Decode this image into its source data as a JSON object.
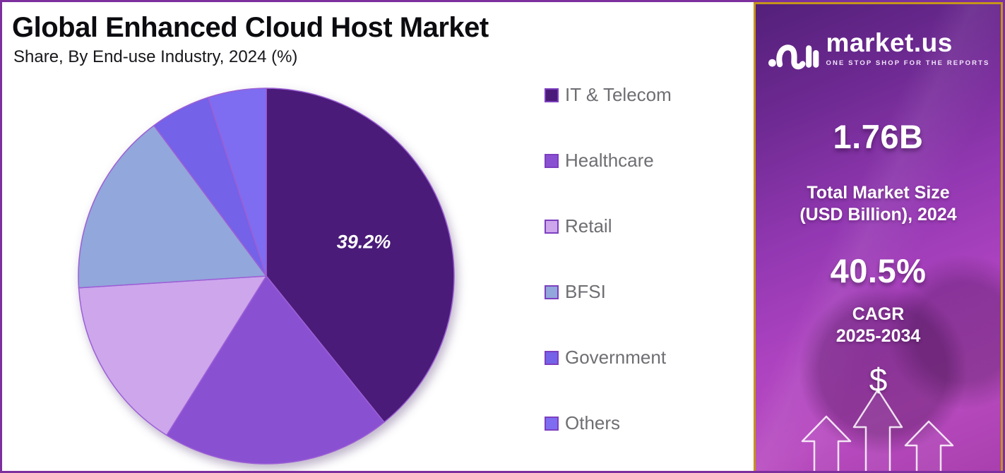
{
  "header": {
    "title": "Global Enhanced Cloud Host Market",
    "subtitle": "Share, By End-use Industry, 2024 (%)"
  },
  "chart_data": {
    "type": "pie",
    "title": "Global Enhanced Cloud Host Market Share, By End-use Industry, 2024 (%)",
    "unit": "%",
    "start_angle_deg": 0,
    "direction": "clockwise",
    "legend_position": "right",
    "slice_border_color": "#9C5FD6",
    "segments": [
      {
        "label": "IT & Telecom",
        "value": 39.2,
        "color": "#4A1B78",
        "data_label": "39.2%"
      },
      {
        "label": "Healthcare",
        "value": 19.7,
        "color": "#8A50D2",
        "data_label": ""
      },
      {
        "label": "Retail",
        "value": 15.1,
        "color": "#CDA6EC",
        "data_label": ""
      },
      {
        "label": "BFSI",
        "value": 15.8,
        "color": "#92A7DB",
        "data_label": ""
      },
      {
        "label": "Government",
        "value": 5.2,
        "color": "#7462E8",
        "data_label": ""
      },
      {
        "label": "Others",
        "value": 5.0,
        "color": "#7E6DF0",
        "data_label": ""
      }
    ]
  },
  "sidebar": {
    "logo": {
      "brand": "market.us",
      "tagline": "ONE STOP SHOP FOR THE REPORTS"
    },
    "market_size": {
      "value": "1.76B",
      "label_line1": "Total Market Size",
      "label_line2": "(USD Billion), 2024"
    },
    "cagr": {
      "value": "40.5%",
      "label_line1": "CAGR",
      "label_line2": "2025-2034"
    },
    "dollar_symbol": "$"
  },
  "colors": {
    "frame_border": "#7D2F9E",
    "sidebar_border": "#C5941B",
    "sidebar_gradient_top": "#53207A",
    "sidebar_gradient_bottom": "#A93FAE",
    "legend_text": "#6E6E73",
    "legend_swatch_border": "#7D3FC0",
    "title_text": "#0C0C10",
    "pie_label_text": "#FFFFFF"
  }
}
